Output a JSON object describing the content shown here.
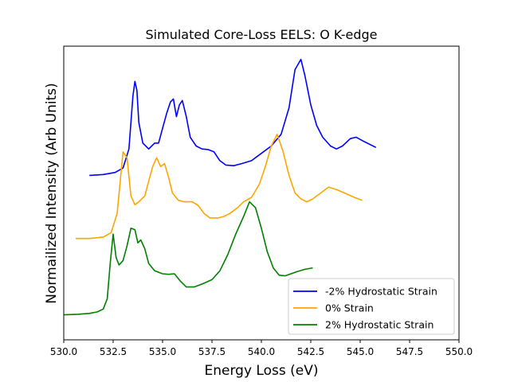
{
  "chart_data": {
    "type": "line",
    "title": "Simulated Core-Loss EELS: O K-edge",
    "xlabel": "Energy Loss (eV)",
    "ylabel": "Normailized Intensity (Arb Units)",
    "xlim": [
      530.0,
      550.0
    ],
    "xticks": [
      "530.0",
      "532.5",
      "535.0",
      "537.5",
      "540.0",
      "542.5",
      "545.0",
      "547.5",
      "550.0"
    ],
    "yticks_visible": false,
    "grid": false,
    "legend": "lower-right",
    "series": [
      {
        "name": "-2% Hydrostatic Strain",
        "color": "#0000ff",
        "points": [
          [
            531.3,
            0.56
          ],
          [
            532.0,
            0.563
          ],
          [
            532.6,
            0.57
          ],
          [
            533.0,
            0.585
          ],
          [
            533.3,
            0.65
          ],
          [
            533.5,
            0.83
          ],
          [
            533.6,
            0.88
          ],
          [
            533.7,
            0.85
          ],
          [
            533.8,
            0.74
          ],
          [
            534.0,
            0.67
          ],
          [
            534.3,
            0.65
          ],
          [
            534.6,
            0.67
          ],
          [
            534.8,
            0.67
          ],
          [
            535.0,
            0.72
          ],
          [
            535.2,
            0.77
          ],
          [
            535.4,
            0.81
          ],
          [
            535.55,
            0.82
          ],
          [
            535.7,
            0.76
          ],
          [
            535.85,
            0.8
          ],
          [
            536.0,
            0.815
          ],
          [
            536.2,
            0.76
          ],
          [
            536.4,
            0.69
          ],
          [
            536.7,
            0.66
          ],
          [
            537.0,
            0.65
          ],
          [
            537.3,
            0.648
          ],
          [
            537.6,
            0.64
          ],
          [
            537.9,
            0.61
          ],
          [
            538.2,
            0.595
          ],
          [
            538.6,
            0.593
          ],
          [
            539.0,
            0.6
          ],
          [
            539.5,
            0.61
          ],
          [
            540.0,
            0.635
          ],
          [
            540.5,
            0.66
          ],
          [
            541.0,
            0.7
          ],
          [
            541.4,
            0.79
          ],
          [
            541.7,
            0.92
          ],
          [
            542.0,
            0.955
          ],
          [
            542.2,
            0.9
          ],
          [
            542.5,
            0.8
          ],
          [
            542.8,
            0.73
          ],
          [
            543.1,
            0.69
          ],
          [
            543.5,
            0.66
          ],
          [
            543.8,
            0.65
          ],
          [
            544.1,
            0.66
          ],
          [
            544.5,
            0.685
          ],
          [
            544.8,
            0.69
          ],
          [
            545.2,
            0.675
          ],
          [
            545.8,
            0.655
          ]
        ]
      },
      {
        "name": "0% Strain",
        "color": "#ffa500",
        "points": [
          [
            530.6,
            0.345
          ],
          [
            531.3,
            0.345
          ],
          [
            532.0,
            0.35
          ],
          [
            532.4,
            0.365
          ],
          [
            532.7,
            0.43
          ],
          [
            533.0,
            0.64
          ],
          [
            533.2,
            0.62
          ],
          [
            533.4,
            0.49
          ],
          [
            533.6,
            0.46
          ],
          [
            533.8,
            0.47
          ],
          [
            534.1,
            0.49
          ],
          [
            534.3,
            0.54
          ],
          [
            534.5,
            0.59
          ],
          [
            534.7,
            0.62
          ],
          [
            534.9,
            0.59
          ],
          [
            535.1,
            0.6
          ],
          [
            535.3,
            0.555
          ],
          [
            535.5,
            0.5
          ],
          [
            535.8,
            0.475
          ],
          [
            536.1,
            0.47
          ],
          [
            536.5,
            0.47
          ],
          [
            536.8,
            0.458
          ],
          [
            537.1,
            0.43
          ],
          [
            537.4,
            0.415
          ],
          [
            537.8,
            0.415
          ],
          [
            538.1,
            0.42
          ],
          [
            538.4,
            0.43
          ],
          [
            538.8,
            0.45
          ],
          [
            539.1,
            0.47
          ],
          [
            539.5,
            0.485
          ],
          [
            539.9,
            0.53
          ],
          [
            540.2,
            0.59
          ],
          [
            540.5,
            0.66
          ],
          [
            540.8,
            0.7
          ],
          [
            541.1,
            0.64
          ],
          [
            541.4,
            0.56
          ],
          [
            541.7,
            0.5
          ],
          [
            542.0,
            0.48
          ],
          [
            542.3,
            0.47
          ],
          [
            542.6,
            0.48
          ],
          [
            543.0,
            0.5
          ],
          [
            543.4,
            0.52
          ],
          [
            543.8,
            0.512
          ],
          [
            544.2,
            0.5
          ],
          [
            544.7,
            0.485
          ],
          [
            545.1,
            0.475
          ]
        ]
      },
      {
        "name": "2% Hydrostatic Strain",
        "color": "#008000",
        "points": [
          [
            530.0,
            0.085
          ],
          [
            530.7,
            0.087
          ],
          [
            531.3,
            0.09
          ],
          [
            531.7,
            0.095
          ],
          [
            532.0,
            0.105
          ],
          [
            532.2,
            0.14
          ],
          [
            532.35,
            0.26
          ],
          [
            532.5,
            0.36
          ],
          [
            532.65,
            0.28
          ],
          [
            532.8,
            0.255
          ],
          [
            533.0,
            0.27
          ],
          [
            533.2,
            0.32
          ],
          [
            533.4,
            0.38
          ],
          [
            533.6,
            0.375
          ],
          [
            533.75,
            0.33
          ],
          [
            533.9,
            0.34
          ],
          [
            534.1,
            0.31
          ],
          [
            534.3,
            0.26
          ],
          [
            534.6,
            0.235
          ],
          [
            535.0,
            0.225
          ],
          [
            535.3,
            0.223
          ],
          [
            535.6,
            0.225
          ],
          [
            535.9,
            0.2
          ],
          [
            536.2,
            0.18
          ],
          [
            536.6,
            0.18
          ],
          [
            537.0,
            0.19
          ],
          [
            537.5,
            0.205
          ],
          [
            537.9,
            0.235
          ],
          [
            538.3,
            0.29
          ],
          [
            538.7,
            0.36
          ],
          [
            539.1,
            0.42
          ],
          [
            539.4,
            0.47
          ],
          [
            539.7,
            0.45
          ],
          [
            540.0,
            0.38
          ],
          [
            540.3,
            0.3
          ],
          [
            540.6,
            0.245
          ],
          [
            540.9,
            0.22
          ],
          [
            541.2,
            0.218
          ],
          [
            541.5,
            0.225
          ],
          [
            541.8,
            0.232
          ],
          [
            542.2,
            0.24
          ],
          [
            542.6,
            0.245
          ]
        ]
      }
    ]
  }
}
